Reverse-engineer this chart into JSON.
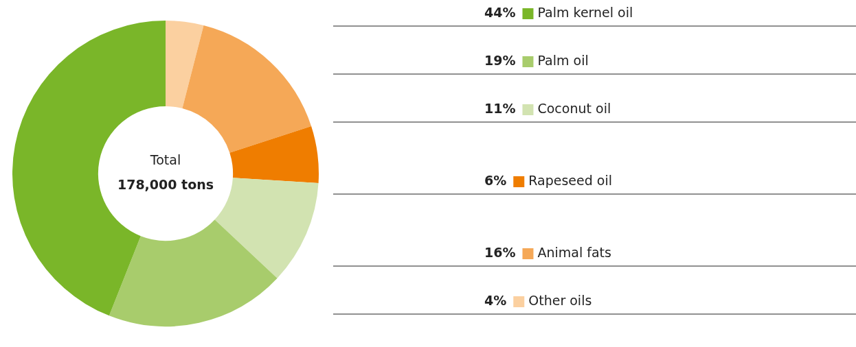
{
  "chart_data": {
    "type": "donut",
    "categories": [
      "Other oils",
      "Animal fats",
      "Rapeseed oil",
      "Coconut oil",
      "Palm oil",
      "Palm kernel oil"
    ],
    "values": [
      4,
      16,
      6,
      11,
      19,
      44
    ],
    "colors": [
      "#fbd0a0",
      "#f5a857",
      "#ef7d00",
      "#d2e3b1",
      "#a8cc6c",
      "#7ab629"
    ],
    "value_labels": [
      "4%",
      "16%",
      "6%",
      "11%",
      "19%",
      "44%"
    ],
    "legend": "right",
    "annotations": [
      "Total",
      "178,000 tons"
    ]
  }
}
